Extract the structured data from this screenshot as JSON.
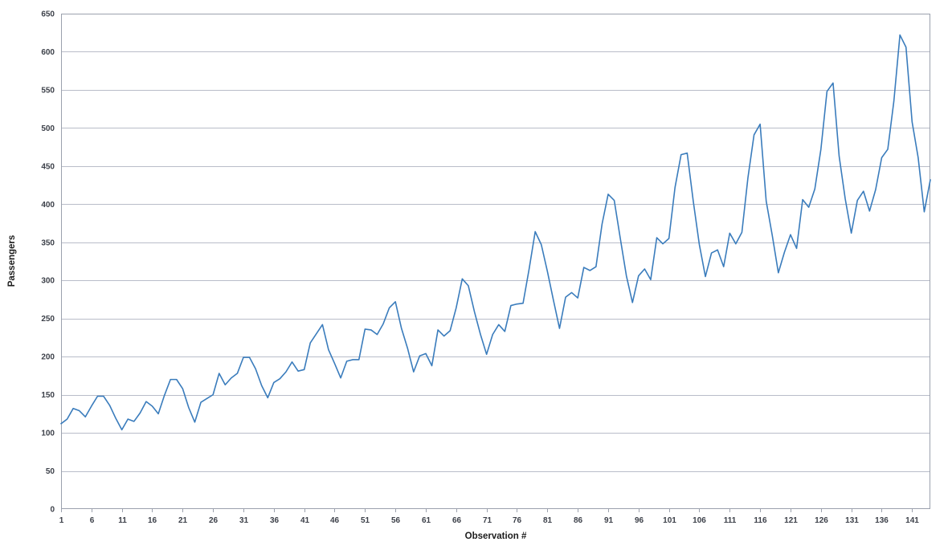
{
  "chart_data": {
    "type": "line",
    "title": "",
    "xlabel": "Observation #",
    "ylabel": "Passengers",
    "xlim": [
      1,
      144
    ],
    "ylim": [
      0,
      650
    ],
    "grid": "horizontal-only",
    "legend": "none",
    "x_ticks": [
      1,
      6,
      11,
      16,
      21,
      26,
      31,
      36,
      41,
      46,
      51,
      56,
      61,
      66,
      71,
      76,
      81,
      86,
      91,
      96,
      101,
      106,
      111,
      116,
      121,
      126,
      131,
      136,
      141
    ],
    "y_ticks": [
      0,
      50,
      100,
      150,
      200,
      250,
      300,
      350,
      400,
      450,
      500,
      550,
      600,
      650
    ],
    "series": [
      {
        "name": "Passengers",
        "values": [
          112,
          118,
          132,
          129,
          121,
          135,
          148,
          148,
          136,
          119,
          104,
          118,
          115,
          126,
          141,
          135,
          125,
          149,
          170,
          170,
          158,
          133,
          114,
          140,
          145,
          150,
          178,
          163,
          172,
          178,
          199,
          199,
          184,
          162,
          146,
          166,
          171,
          180,
          193,
          181,
          183,
          218,
          230,
          242,
          209,
          191,
          172,
          194,
          196,
          196,
          236,
          235,
          229,
          243,
          264,
          272,
          237,
          211,
          180,
          201,
          204,
          188,
          235,
          227,
          234,
          264,
          302,
          293,
          259,
          229,
          203,
          229,
          242,
          233,
          267,
          269,
          270,
          315,
          364,
          347,
          312,
          274,
          237,
          278,
          284,
          277,
          317,
          313,
          318,
          374,
          413,
          405,
          355,
          306,
          271,
          306,
          315,
          301,
          356,
          348,
          355,
          422,
          465,
          467,
          404,
          347,
          305,
          336,
          340,
          318,
          362,
          348,
          363,
          435,
          491,
          505,
          404,
          359,
          310,
          337,
          360,
          342,
          406,
          396,
          420,
          472,
          548,
          559,
          463,
          407,
          362,
          405,
          417,
          391,
          419,
          461,
          472,
          535,
          622,
          606,
          508,
          461,
          390,
          432
        ]
      }
    ],
    "colors": {
      "line": "#3a7cbc",
      "grid": "#b9bdc9",
      "axis": "#9ba1ad",
      "tick_text": "#3c4049",
      "title_text": "#1c1c1c",
      "background": "#ffffff"
    }
  }
}
